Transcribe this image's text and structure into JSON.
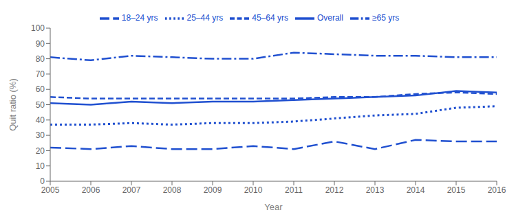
{
  "chart_data": {
    "type": "line",
    "x": [
      2005,
      2006,
      2007,
      2008,
      2009,
      2010,
      2011,
      2012,
      2013,
      2014,
      2015,
      2016
    ],
    "xlim": [
      2005,
      2016
    ],
    "xticks": [
      2005,
      2006,
      2007,
      2008,
      2009,
      2010,
      2011,
      2012,
      2013,
      2014,
      2015,
      2016
    ],
    "ylim": [
      0,
      100
    ],
    "yticks": [
      0,
      10,
      20,
      30,
      40,
      50,
      60,
      70,
      80,
      90,
      100
    ],
    "xlabel": "Year",
    "ylabel": "Quit ratio (%)",
    "grid": false,
    "legend": "top",
    "series": [
      {
        "name": "Overall",
        "color": "#2050d0",
        "line_style": "solid",
        "values": [
          51,
          50,
          52,
          51,
          52,
          52,
          53,
          54,
          55,
          56,
          59,
          58
        ]
      },
      {
        "name": "18–24 yrs",
        "color": "#2050d0",
        "line_style": "longdash",
        "values": [
          22,
          21,
          23,
          21,
          21,
          23,
          21,
          26,
          21,
          27,
          26,
          26
        ]
      },
      {
        "name": "25–44 yrs",
        "color": "#2050d0",
        "line_style": "dotted",
        "values": [
          37,
          37,
          38,
          37,
          38,
          38,
          39,
          41,
          43,
          44,
          48,
          49
        ]
      },
      {
        "name": "45–64 yrs",
        "color": "#2050d0",
        "line_style": "dashed",
        "values": [
          55,
          54,
          54,
          54,
          54,
          54,
          54,
          55,
          55,
          57,
          58,
          57
        ]
      },
      {
        "name": "≥65 yrs",
        "color": "#2050d0",
        "line_style": "dashdot",
        "values": [
          81,
          79,
          82,
          81,
          80,
          80,
          84,
          83,
          82,
          82,
          81,
          81
        ]
      }
    ]
  }
}
